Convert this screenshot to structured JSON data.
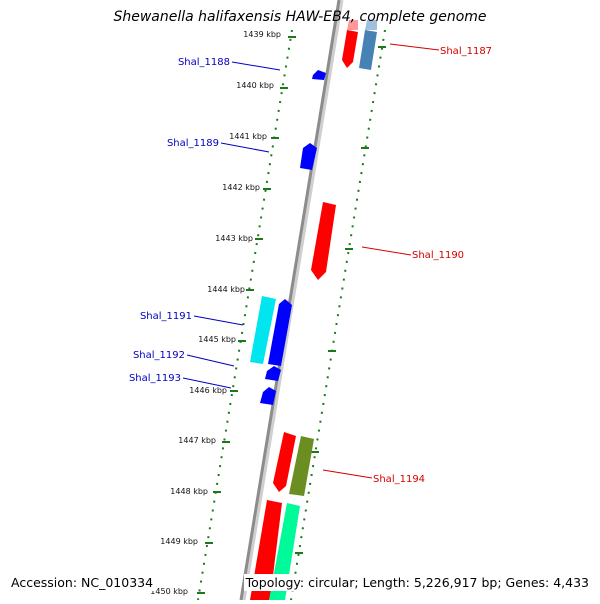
{
  "title": "Shewanella halifaxensis HAW-EB4, complete genome",
  "accession": "Accession: NC_010334",
  "topology": "Topology: circular; Length: 5,226,917 bp; Genes: 4,433",
  "colors": {
    "backbone": "#8c8c8c",
    "tick": "#1a7a1a",
    "forward_label": "#d40000",
    "reverse_label": "#0000c0"
  },
  "ticks": [
    "1439 kbp",
    "1440 kbp",
    "1441 kbp",
    "1442 kbp",
    "1443 kbp",
    "1444 kbp",
    "1445 kbp",
    "1446 kbp",
    "1447 kbp",
    "1448 kbp",
    "1449 kbp",
    "1450 kbp"
  ],
  "genes": [
    {
      "id": "Shal_1187",
      "strand": "forward",
      "label_color": "red"
    },
    {
      "id": "Shal_1188",
      "strand": "reverse",
      "label_color": "blue"
    },
    {
      "id": "Shal_1189",
      "strand": "reverse",
      "label_color": "blue"
    },
    {
      "id": "Shal_1190",
      "strand": "forward",
      "label_color": "red"
    },
    {
      "id": "Shal_1191",
      "strand": "reverse",
      "label_color": "blue"
    },
    {
      "id": "Shal_1192",
      "strand": "reverse",
      "label_color": "blue"
    },
    {
      "id": "Shal_1193",
      "strand": "reverse",
      "label_color": "blue"
    },
    {
      "id": "Shal_1194",
      "strand": "forward",
      "label_color": "red"
    }
  ]
}
